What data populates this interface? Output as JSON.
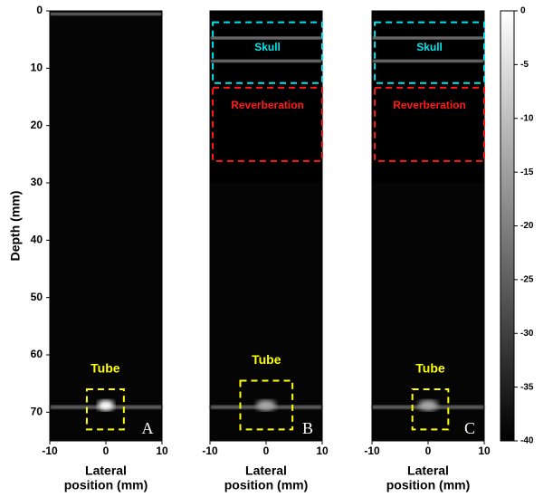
{
  "chart_data": [
    {
      "type": "image",
      "ylabel": "Depth (mm)",
      "xlabel": [
        "Lateral",
        "position (mm)"
      ],
      "xlim": [
        -10,
        10
      ],
      "ylim": [
        0,
        75
      ],
      "xticks": [
        -10,
        0,
        10
      ],
      "yticks": [
        0,
        10,
        20,
        30,
        40,
        50,
        60,
        70
      ],
      "panel_label": "A",
      "annotations": [
        "Tube"
      ]
    },
    {
      "type": "image",
      "xlabel": [
        "Lateral",
        "position (mm)"
      ],
      "xlim": [
        -10,
        10
      ],
      "ylim": [
        0,
        75
      ],
      "xticks": [
        -10,
        0,
        10
      ],
      "panel_label": "B",
      "annotations": [
        "Skull",
        "Reverberation",
        "Tube"
      ]
    },
    {
      "type": "image",
      "xlabel": [
        "Lateral",
        "position (mm)"
      ],
      "xlim": [
        -10,
        10
      ],
      "ylim": [
        0,
        75
      ],
      "xticks": [
        -10,
        0,
        10
      ],
      "panel_label": "C",
      "annotations": [
        "Skull",
        "Reverberation",
        "Tube"
      ]
    },
    {
      "type": "colorbar",
      "ylim": [
        -40,
        0
      ],
      "yticks": [
        0,
        -5,
        -10,
        -15,
        -20,
        -25,
        -30,
        -35,
        -40
      ]
    }
  ]
}
